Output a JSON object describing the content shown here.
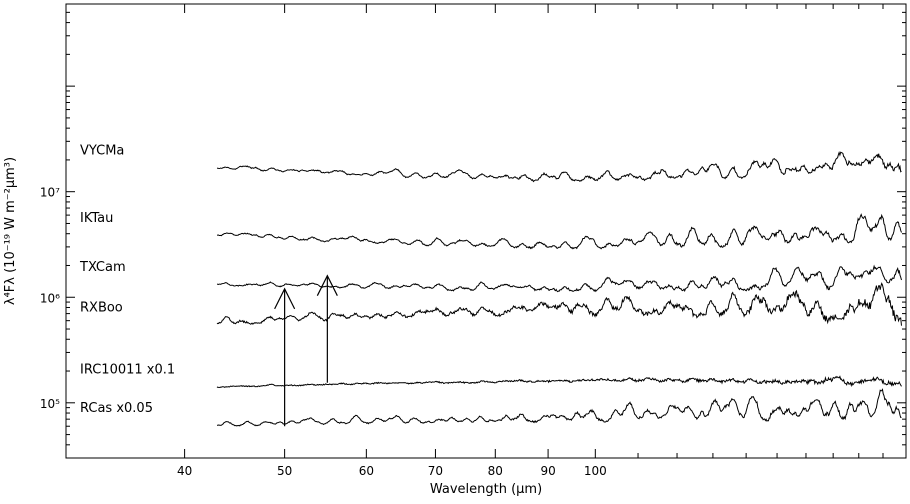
{
  "chart_data": {
    "type": "line",
    "title": "",
    "xlabel": "Wavelength (μm)",
    "ylabel": "λ⁴Fλ (10⁻¹⁹ W m⁻²μm³)",
    "x_scale": "log",
    "y_scale": "log",
    "xlim": [
      30.7,
      200
    ],
    "ylim": [
      30000,
      600000000
    ],
    "x_ticks": [
      40,
      50,
      60,
      70,
      80,
      90,
      100
    ],
    "x_tick_labels": [
      "40",
      "50",
      "60",
      "70",
      "80",
      "90",
      "100"
    ],
    "y_ticks": [
      100000,
      1000000,
      10000000
    ],
    "y_tick_labels": [
      "10⁵",
      "10⁶",
      "10⁷"
    ],
    "x_range": [
      43,
      198
    ],
    "series": [
      {
        "name": "VYCMa",
        "level": 16500000,
        "trend": -0.12,
        "line_amp": 0.1,
        "noise": 0.02,
        "seed": 11
      },
      {
        "name": "IKTau",
        "level": 3800000,
        "trend": -0.12,
        "line_amp": 0.1,
        "noise": 0.02,
        "seed": 23
      },
      {
        "name": "TXCam",
        "level": 1300000,
        "trend": -0.06,
        "line_amp": 0.09,
        "noise": 0.02,
        "seed": 37
      },
      {
        "name": "RXBoo",
        "level": 540000,
        "trend": 0.1,
        "line_amp": 0.12,
        "noise": 0.04,
        "seed": 41
      },
      {
        "name": "IRC10011 x0.1",
        "level": 140000,
        "trend": 0.05,
        "line_amp": 0.03,
        "noise": 0.02,
        "seed": 53
      },
      {
        "name": "RCas  x0.05",
        "level": 60000,
        "trend": 0.04,
        "line_amp": 0.12,
        "noise": 0.02,
        "seed": 67
      }
    ],
    "annotations": [
      {
        "type": "arrow",
        "x": 50,
        "y_from": 60000,
        "y_to": 1200000,
        "head": "up"
      },
      {
        "type": "arrow",
        "x": 55,
        "y_from": 155000,
        "y_to": 1600000,
        "head": "up"
      }
    ]
  }
}
